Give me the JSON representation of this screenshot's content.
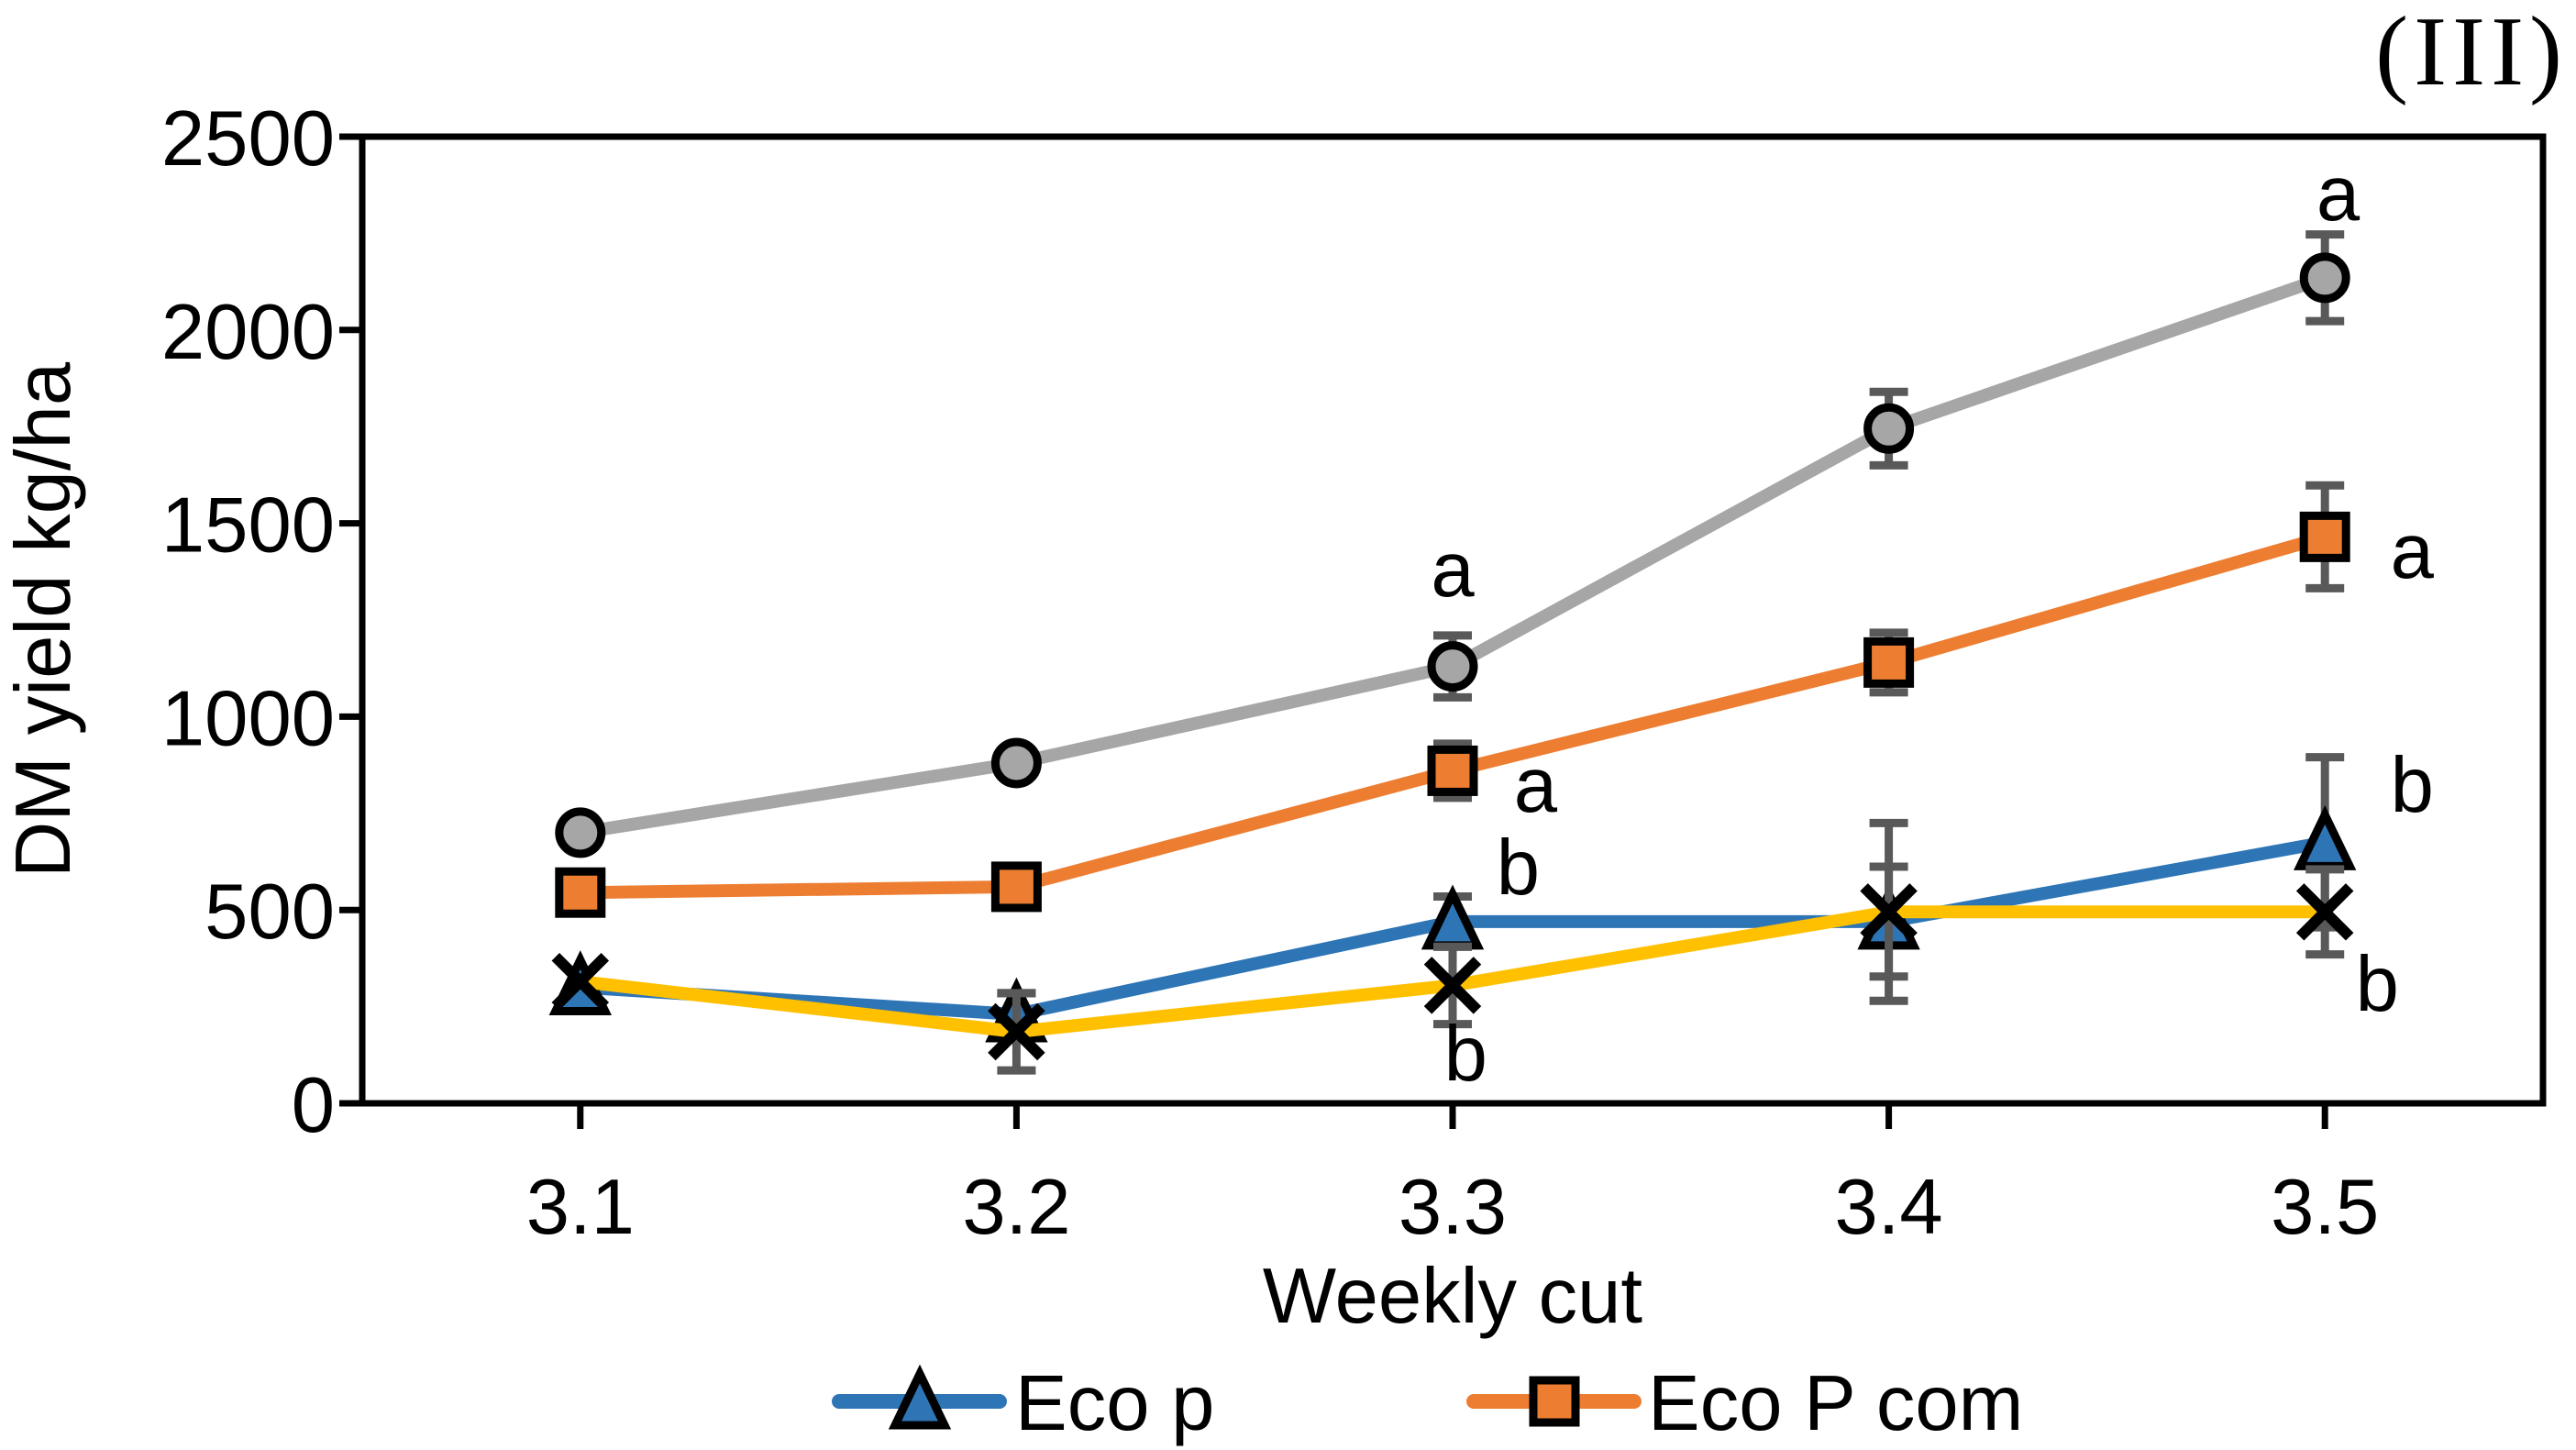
{
  "chart_data": {
    "type": "line",
    "title": "(III)",
    "xlabel": "Weekly cut",
    "ylabel": "DM yield kg/ha",
    "categories": [
      "3.1",
      "3.2",
      "3.3",
      "3.4",
      "3.5"
    ],
    "ylim": [
      0,
      2500
    ],
    "yticks": [
      0,
      500,
      1000,
      1500,
      2000,
      2500
    ],
    "grid": false,
    "legend_position": "bottom",
    "axis_color": "#000000",
    "error_bar_color": "#595959",
    "marker_outline_color": "#000000",
    "series": [
      {
        "name": "Eco p",
        "marker": "triangle",
        "color": "#2E75B6",
        "in_legend": true,
        "values": [
          300,
          230,
          470,
          470,
          675
        ],
        "errors": [
          null,
          55,
          65,
          142,
          220
        ]
      },
      {
        "name": "Eco P com",
        "marker": "square",
        "color": "#ED7D31",
        "in_legend": true,
        "values": [
          545,
          560,
          860,
          1140,
          1465
        ],
        "errors": [
          null,
          null,
          70,
          77,
          133
        ]
      },
      {
        "name": null,
        "marker": "circle",
        "color": "#A6A6A6",
        "in_legend": false,
        "values": [
          700,
          880,
          1130,
          1745,
          2135
        ],
        "errors": [
          null,
          null,
          80,
          95,
          112
        ]
      },
      {
        "name": null,
        "marker": "x",
        "color": "#FFC000",
        "in_legend": false,
        "values": [
          315,
          185,
          305,
          495,
          495
        ],
        "errors": [
          null,
          100,
          100,
          230,
          110
        ]
      }
    ],
    "annotations": [
      {
        "text": "a",
        "x": 2.0,
        "value": 1383
      },
      {
        "text": "a",
        "x": 2.19,
        "value": 825
      },
      {
        "text": "b",
        "x": 2.15,
        "value": 612
      },
      {
        "text": "b",
        "x": 2.03,
        "value": 130
      },
      {
        "text": "a",
        "x": 4.03,
        "value": 2355
      },
      {
        "text": "a",
        "x": 4.2,
        "value": 1430
      },
      {
        "text": "b",
        "x": 4.2,
        "value": 825
      },
      {
        "text": "b",
        "x": 4.12,
        "value": 311
      }
    ]
  }
}
